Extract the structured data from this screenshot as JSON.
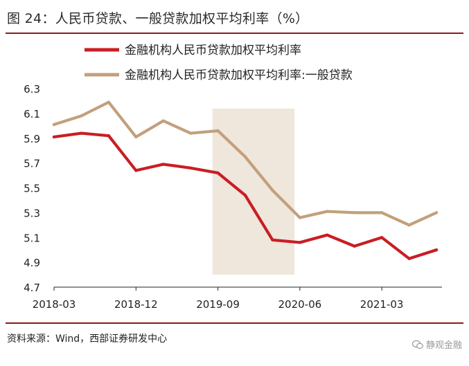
{
  "figure": {
    "title": "图 24：人民币贷款、一般贷款加权平均利率（%）",
    "source": "资料来源：Wind，西部证券研发中心",
    "watermark": "静观金融"
  },
  "chart_data": {
    "type": "line",
    "title": "图 24：人民币贷款、一般贷款加权平均利率（%）",
    "xlabel": "",
    "ylabel": "",
    "ylim": [
      4.7,
      6.3
    ],
    "yticks": [
      "6.3",
      "6.1",
      "5.9",
      "5.7",
      "5.5",
      "5.3",
      "5.1",
      "4.9",
      "4.7"
    ],
    "x": [
      "2018-03",
      "2018-06",
      "2018-09",
      "2018-12",
      "2019-03",
      "2019-06",
      "2019-09",
      "2019-12",
      "2020-03",
      "2020-06",
      "2020-09",
      "2020-12",
      "2021-03",
      "2021-06",
      "2021-09"
    ],
    "xtick_labels": [
      "2018-03",
      "2018-12",
      "2019-09",
      "2020-06",
      "2021-03"
    ],
    "xtick_index": [
      0,
      3,
      6,
      9,
      12
    ],
    "shaded_region": {
      "from_index": 5.8,
      "to_index": 8.8,
      "color": "#efe6dc"
    },
    "legend_position": "top",
    "series": [
      {
        "name": "金融机构人民币贷款加权平均利率",
        "color": "#c81e24",
        "values": [
          5.91,
          5.94,
          5.92,
          5.64,
          5.69,
          5.66,
          5.62,
          5.44,
          5.08,
          5.06,
          5.12,
          5.03,
          5.1,
          4.93,
          5.0
        ]
      },
      {
        "name": "金融机构人民币贷款加权平均利率:一般贷款",
        "color": "#c2a07c",
        "values": [
          6.01,
          6.08,
          6.19,
          5.91,
          6.04,
          5.94,
          5.96,
          5.75,
          5.48,
          5.26,
          5.31,
          5.3,
          5.3,
          5.2,
          5.3
        ]
      }
    ]
  }
}
